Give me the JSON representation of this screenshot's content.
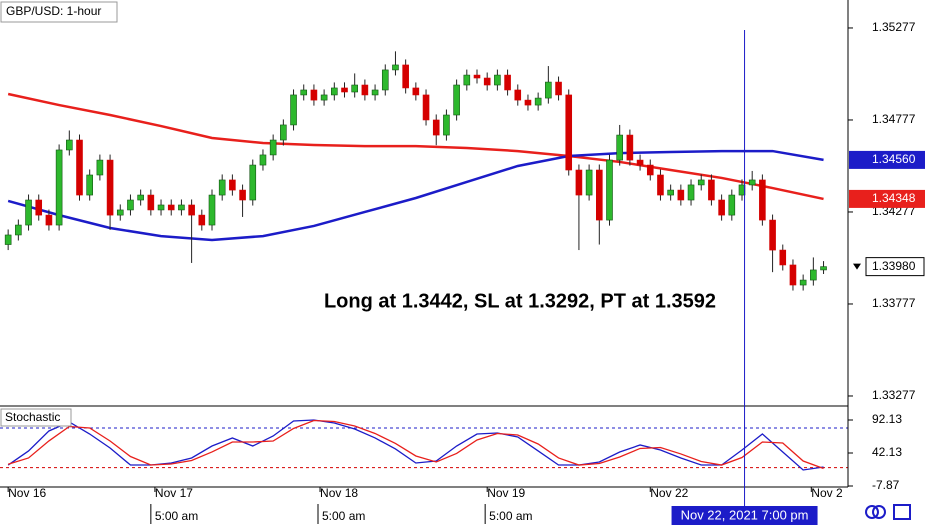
{
  "chart_data": [
    {
      "type": "candlestick",
      "title": "GBP/USD: 1-hour",
      "annotation": "Long at 1.3442, SL at 1.3292, PT at 1.3592",
      "up_color": "#2db82d",
      "down_color": "#d50000",
      "xlim": [
        -0.8,
        82.4
      ],
      "ylim": [
        1.33228,
        1.35429
      ],
      "yticks": [
        1.35277,
        1.34777,
        1.34277,
        1.33777,
        1.33277
      ],
      "xticks": [
        {
          "value": 0,
          "label": "Nov 16"
        },
        {
          "value": 14.4,
          "label": "Nov 17"
        },
        {
          "value": 30.6,
          "label": "Nov 18"
        },
        {
          "value": 47,
          "label": "Nov 19"
        },
        {
          "value": 63,
          "label": "Nov 22"
        },
        {
          "value": 78.8,
          "label": "Nov 2"
        }
      ],
      "time_ticks": [
        {
          "value": 14,
          "label": "5:00 am"
        },
        {
          "value": 30.4,
          "label": "5:00 am"
        },
        {
          "value": 46.8,
          "label": "5:00 am"
        }
      ],
      "crosshair": {
        "x": 72.25,
        "label": "Nov 22, 2021 7:00 pm"
      },
      "candles": {
        "open": [
          1.341,
          1.34152,
          1.34206,
          1.34342,
          1.3426,
          1.34206,
          1.34614,
          1.34668,
          1.34369,
          1.34478,
          1.34559,
          1.3426,
          1.34288,
          1.34342,
          1.34369,
          1.34288,
          1.34315,
          1.34288,
          1.34315,
          1.3426,
          1.34206,
          1.34369,
          1.34451,
          1.34396,
          1.34342,
          1.34532,
          1.34587,
          1.34668,
          1.3475,
          1.34913,
          1.3494,
          1.34885,
          1.34913,
          1.34951,
          1.34929,
          1.34967,
          1.34913,
          1.3494,
          1.35049,
          1.35076,
          1.34951,
          1.34913,
          1.34777,
          1.34695,
          1.34804,
          1.34967,
          1.35021,
          1.35005,
          1.34967,
          1.35021,
          1.3494,
          1.34885,
          1.34858,
          1.34896,
          1.34983,
          1.34913,
          1.34505,
          1.34369,
          1.34505,
          1.34233,
          1.34559,
          1.34695,
          1.34559,
          1.34532,
          1.34478,
          1.34369,
          1.34396,
          1.34342,
          1.34424,
          1.34451,
          1.34342,
          1.3426,
          1.34369,
          1.34424,
          1.34451,
          1.34233,
          1.3407,
          1.33989,
          1.3388,
          1.33907,
          1.33962
        ],
        "high": [
          1.34182,
          1.34236,
          1.34372,
          1.34372,
          1.3429,
          1.34644,
          1.3472,
          1.34698,
          1.34508,
          1.34589,
          1.34589,
          1.34318,
          1.34372,
          1.34399,
          1.34399,
          1.34345,
          1.34345,
          1.34345,
          1.34345,
          1.3429,
          1.34399,
          1.34481,
          1.34481,
          1.34426,
          1.34562,
          1.34617,
          1.34698,
          1.3478,
          1.34943,
          1.3497,
          1.3497,
          1.34943,
          1.34981,
          1.34981,
          1.3503,
          1.34997,
          1.3497,
          1.35079,
          1.3515,
          1.35106,
          1.34981,
          1.34943,
          1.34807,
          1.34834,
          1.34997,
          1.35051,
          1.35051,
          1.35035,
          1.35051,
          1.35051,
          1.3497,
          1.34915,
          1.34926,
          1.3507,
          1.35013,
          1.34943,
          1.34535,
          1.34535,
          1.34535,
          1.34589,
          1.3475,
          1.34725,
          1.34589,
          1.34562,
          1.34508,
          1.34426,
          1.34426,
          1.34454,
          1.34481,
          1.34481,
          1.34372,
          1.34399,
          1.34454,
          1.345,
          1.34481,
          1.34263,
          1.341,
          1.34019,
          1.33937,
          1.3403,
          1.3401
        ],
        "low": [
          1.3407,
          1.34122,
          1.34176,
          1.3423,
          1.34176,
          1.34176,
          1.34584,
          1.34339,
          1.34339,
          1.34448,
          1.3418,
          1.3423,
          1.34258,
          1.34312,
          1.34258,
          1.34258,
          1.34258,
          1.34258,
          1.34,
          1.34176,
          1.34176,
          1.34339,
          1.34366,
          1.3425,
          1.34312,
          1.34502,
          1.34557,
          1.34638,
          1.3472,
          1.34883,
          1.34855,
          1.34855,
          1.34883,
          1.34899,
          1.34899,
          1.34883,
          1.34883,
          1.3491,
          1.35019,
          1.34921,
          1.34883,
          1.34747,
          1.3464,
          1.34665,
          1.34774,
          1.34937,
          1.34975,
          1.34937,
          1.34937,
          1.3491,
          1.34855,
          1.34828,
          1.34828,
          1.34866,
          1.34883,
          1.34475,
          1.3407,
          1.34339,
          1.341,
          1.34203,
          1.34529,
          1.34529,
          1.34502,
          1.34448,
          1.34339,
          1.34339,
          1.34312,
          1.34312,
          1.34394,
          1.34312,
          1.3423,
          1.3423,
          1.34339,
          1.34394,
          1.34203,
          1.3395,
          1.33959,
          1.3385,
          1.3385,
          1.33877,
          1.3394
        ],
        "close": [
          1.34152,
          1.34206,
          1.34342,
          1.3426,
          1.34206,
          1.34614,
          1.34668,
          1.34369,
          1.34478,
          1.34559,
          1.3426,
          1.34288,
          1.34342,
          1.34369,
          1.34288,
          1.34315,
          1.34288,
          1.34315,
          1.3426,
          1.34206,
          1.34369,
          1.34451,
          1.34396,
          1.34342,
          1.34532,
          1.34587,
          1.34668,
          1.3475,
          1.34913,
          1.3494,
          1.34885,
          1.34913,
          1.34951,
          1.34929,
          1.34967,
          1.34913,
          1.3494,
          1.35049,
          1.35076,
          1.34951,
          1.34913,
          1.34777,
          1.34695,
          1.34804,
          1.34967,
          1.35021,
          1.35005,
          1.34967,
          1.35021,
          1.3494,
          1.34885,
          1.34858,
          1.34896,
          1.34983,
          1.34913,
          1.34505,
          1.34369,
          1.34505,
          1.34233,
          1.34559,
          1.34695,
          1.34559,
          1.34532,
          1.34478,
          1.34369,
          1.34396,
          1.34342,
          1.34424,
          1.34451,
          1.34342,
          1.3426,
          1.34369,
          1.34424,
          1.34451,
          1.34233,
          1.3407,
          1.33989,
          1.3388,
          1.33907,
          1.33962,
          1.3398
        ],
        "last_label": "1.33980"
      },
      "series": [
        {
          "color": "#e8201c",
          "x": [
            0,
            5,
            10,
            15,
            20,
            25,
            30,
            35,
            40,
            45,
            50,
            55,
            60,
            65,
            70,
            75,
            80
          ],
          "values": [
            1.34918,
            1.34858,
            1.34804,
            1.34744,
            1.34679,
            1.34652,
            1.34641,
            1.34635,
            1.34635,
            1.34625,
            1.34608,
            1.34581,
            1.34549,
            1.34505,
            1.34462,
            1.34407,
            1.34348
          ],
          "last_label": "1.34348"
        },
        {
          "color": "#1c1cc8",
          "x": [
            0,
            5,
            10,
            15,
            20,
            25,
            30,
            35,
            40,
            45,
            50,
            55,
            60,
            65,
            70,
            75,
            80
          ],
          "values": [
            1.34337,
            1.3426,
            1.3419,
            1.34146,
            1.34125,
            1.34146,
            1.34201,
            1.34277,
            1.34353,
            1.3444,
            1.34527,
            1.34581,
            1.34597,
            1.34603,
            1.34608,
            1.34608,
            1.3456
          ],
          "last_label": "1.34560"
        }
      ]
    },
    {
      "type": "line",
      "title": "Stochastic",
      "xlim": [
        -0.8,
        82.4
      ],
      "ylim": [
        -7.87,
        110.3
      ],
      "yticks": [
        92.13,
        42.13,
        -7.87
      ],
      "levels": [
        {
          "value": 80,
          "color": "#1c1cc8"
        },
        {
          "value": 20,
          "color": "#d50000"
        }
      ],
      "x": [
        0,
        2,
        4,
        6,
        8,
        10,
        12,
        14,
        16,
        18,
        20,
        22,
        24,
        26,
        28,
        30,
        32,
        34,
        36,
        38,
        40,
        42,
        44,
        46,
        48,
        50,
        52,
        54,
        56,
        58,
        60,
        62,
        64,
        66,
        68,
        70,
        72,
        74,
        76,
        78,
        80
      ],
      "series": [
        {
          "color": "#1c1cc8",
          "values": [
            23.9,
            45.2,
            75.5,
            89.1,
            70.9,
            49.7,
            23.9,
            23.9,
            27.0,
            34.6,
            52.7,
            64.9,
            52.7,
            67.9,
            90.6,
            92.1,
            87.6,
            78.5,
            64.9,
            48.2,
            27.0,
            30.0,
            52.7,
            70.9,
            72.4,
            66.4,
            45.2,
            23.9,
            23.9,
            28.5,
            43.6,
            54.3,
            46.7,
            34.6,
            23.9,
            23.9,
            46.7,
            70.9,
            43.6,
            16.4,
            20.9
          ]
        },
        {
          "color": "#e8201c",
          "values": [
            25,
            34.6,
            60.4,
            82.3,
            80.0,
            60.3,
            36.8,
            23.9,
            25.5,
            30.8,
            43.7,
            58.8,
            58.8,
            60.3,
            79.3,
            91.4,
            89.9,
            83.1,
            71.7,
            56.6,
            37.6,
            28.5,
            41.4,
            61.8,
            71.7,
            69.4,
            55.8,
            34.6,
            23.9,
            26.2,
            36.1,
            49.0,
            50.5,
            40.7,
            29.3,
            23.9,
            35.3,
            58.8,
            57.3,
            30.0,
            18.7
          ]
        }
      ]
    }
  ]
}
